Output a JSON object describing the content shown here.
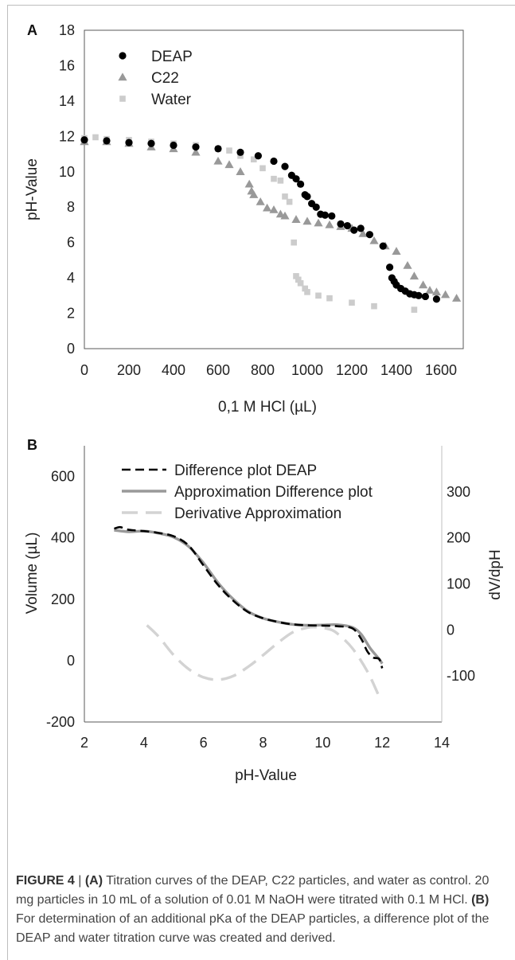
{
  "panel_a": {
    "letter": "A",
    "xlabel": "0,1 M HCl (µL)",
    "ylabel": "pH-Value",
    "legend": [
      "DEAP",
      "C22",
      "Water"
    ]
  },
  "panel_b": {
    "letter": "B",
    "xlabel": "pH-Value",
    "ylabel": "Volume (µL)",
    "y2label": "dV/dpH",
    "legend": [
      "Difference plot DEAP",
      "Approximation Difference plot",
      "Derivative Approximation"
    ]
  },
  "caption": {
    "label": "FIGURE 4",
    "sep": " | ",
    "part_a_label": "(A)",
    "part_a_text": " Titration curves of the DEAP, C22 particles, and water as control. 20 mg particles in 10 mL of a solution of 0.01 M NaOH were titrated with 0.1 M HCl. ",
    "part_b_label": "(B)",
    "part_b_text": " For determination of an additional pKa of the DEAP particles, a difference plot of the DEAP and water titration curve was created and derived."
  },
  "chart_data": [
    {
      "type": "scatter",
      "xlabel": "0,1 M HCl (µL)",
      "ylabel": "pH-Value",
      "xlim": [
        0,
        1700
      ],
      "ylim": [
        0,
        18
      ],
      "xticks": [
        0,
        200,
        400,
        600,
        800,
        1000,
        1200,
        1400,
        1600
      ],
      "yticks": [
        0,
        2,
        4,
        6,
        8,
        10,
        12,
        14,
        16,
        18
      ],
      "legend_position": "top-left",
      "grid": false,
      "series": [
        {
          "name": "DEAP",
          "marker": "circle",
          "color": "#000000",
          "points": [
            [
              0,
              11.8
            ],
            [
              100,
              11.75
            ],
            [
              200,
              11.65
            ],
            [
              300,
              11.6
            ],
            [
              400,
              11.5
            ],
            [
              500,
              11.4
            ],
            [
              600,
              11.3
            ],
            [
              700,
              11.1
            ],
            [
              780,
              10.9
            ],
            [
              850,
              10.6
            ],
            [
              900,
              10.3
            ],
            [
              930,
              9.8
            ],
            [
              950,
              9.6
            ],
            [
              970,
              9.3
            ],
            [
              990,
              8.7
            ],
            [
              1000,
              8.6
            ],
            [
              1020,
              8.2
            ],
            [
              1040,
              8.0
            ],
            [
              1060,
              7.6
            ],
            [
              1080,
              7.55
            ],
            [
              1110,
              7.5
            ],
            [
              1150,
              7.05
            ],
            [
              1180,
              6.95
            ],
            [
              1210,
              6.7
            ],
            [
              1240,
              6.8
            ],
            [
              1280,
              6.45
            ],
            [
              1340,
              5.8
            ],
            [
              1370,
              4.6
            ],
            [
              1380,
              4.0
            ],
            [
              1390,
              3.8
            ],
            [
              1400,
              3.6
            ],
            [
              1420,
              3.4
            ],
            [
              1440,
              3.25
            ],
            [
              1460,
              3.1
            ],
            [
              1480,
              3.05
            ],
            [
              1500,
              3.0
            ],
            [
              1530,
              2.95
            ],
            [
              1580,
              2.8
            ]
          ]
        },
        {
          "name": "C22",
          "marker": "triangle",
          "color": "#999999",
          "points": [
            [
              0,
              11.7
            ],
            [
              100,
              11.7
            ],
            [
              200,
              11.6
            ],
            [
              300,
              11.4
            ],
            [
              400,
              11.3
            ],
            [
              500,
              11.1
            ],
            [
              600,
              10.6
            ],
            [
              650,
              10.4
            ],
            [
              700,
              10.0
            ],
            [
              740,
              9.3
            ],
            [
              750,
              8.9
            ],
            [
              760,
              8.7
            ],
            [
              790,
              8.3
            ],
            [
              820,
              7.95
            ],
            [
              850,
              7.85
            ],
            [
              880,
              7.6
            ],
            [
              900,
              7.5
            ],
            [
              950,
              7.3
            ],
            [
              1000,
              7.2
            ],
            [
              1050,
              7.1
            ],
            [
              1100,
              7.0
            ],
            [
              1150,
              6.9
            ],
            [
              1200,
              6.8
            ],
            [
              1250,
              6.5
            ],
            [
              1300,
              6.1
            ],
            [
              1350,
              5.8
            ],
            [
              1400,
              5.5
            ],
            [
              1450,
              4.7
            ],
            [
              1480,
              4.1
            ],
            [
              1520,
              3.6
            ],
            [
              1550,
              3.3
            ],
            [
              1580,
              3.2
            ],
            [
              1620,
              3.05
            ],
            [
              1670,
              2.85
            ]
          ]
        },
        {
          "name": "Water",
          "marker": "square",
          "color": "#cccccc",
          "points": [
            [
              0,
              11.9
            ],
            [
              50,
              11.95
            ],
            [
              100,
              11.85
            ],
            [
              200,
              11.8
            ],
            [
              300,
              11.7
            ],
            [
              400,
              11.6
            ],
            [
              500,
              11.5
            ],
            [
              600,
              11.3
            ],
            [
              650,
              11.2
            ],
            [
              700,
              10.9
            ],
            [
              760,
              10.7
            ],
            [
              800,
              10.2
            ],
            [
              850,
              9.6
            ],
            [
              880,
              9.5
            ],
            [
              900,
              8.6
            ],
            [
              920,
              8.3
            ],
            [
              940,
              6.0
            ],
            [
              950,
              4.1
            ],
            [
              960,
              3.9
            ],
            [
              970,
              3.7
            ],
            [
              990,
              3.4
            ],
            [
              1000,
              3.2
            ],
            [
              1050,
              3.0
            ],
            [
              1100,
              2.85
            ],
            [
              1200,
              2.6
            ],
            [
              1300,
              2.4
            ],
            [
              1480,
              2.2
            ]
          ]
        }
      ]
    },
    {
      "type": "line",
      "xlabel": "pH-Value",
      "ylabel": "Volume (µL)",
      "y2label": "dV/dpH",
      "xlim": [
        2,
        14
      ],
      "ylim": [
        -200,
        700
      ],
      "y2lim": [
        -200,
        400
      ],
      "xticks": [
        2,
        4,
        6,
        8,
        10,
        12,
        14
      ],
      "yticks": [
        -200,
        0,
        200,
        400,
        600
      ],
      "y2ticks": [
        -100,
        0,
        100,
        200,
        300
      ],
      "legend_position": "top",
      "grid": false,
      "series": [
        {
          "name": "Difference plot DEAP",
          "axis": "left",
          "style": "dashed",
          "color": "#000000",
          "points": [
            [
              3.0,
              430
            ],
            [
              3.2,
              435
            ],
            [
              3.4,
              428
            ],
            [
              3.6,
              425
            ],
            [
              4.0,
              422
            ],
            [
              4.5,
              416
            ],
            [
              5.0,
              405
            ],
            [
              5.5,
              375
            ],
            [
              6.0,
              310
            ],
            [
              6.5,
              245
            ],
            [
              7.0,
              195
            ],
            [
              7.5,
              158
            ],
            [
              8.0,
              138
            ],
            [
              8.5,
              126
            ],
            [
              9.0,
              118
            ],
            [
              9.5,
              115
            ],
            [
              10.0,
              114
            ],
            [
              10.5,
              112
            ],
            [
              11.0,
              105
            ],
            [
              11.3,
              70
            ],
            [
              11.5,
              30
            ],
            [
              11.7,
              10
            ],
            [
              11.9,
              5
            ],
            [
              12.0,
              -25
            ]
          ]
        },
        {
          "name": "Approximation Difference plot",
          "axis": "left",
          "style": "solid",
          "color": "#999999",
          "points": [
            [
              3.0,
              425
            ],
            [
              3.5,
              420
            ],
            [
              4.0,
              422
            ],
            [
              4.5,
              415
            ],
            [
              5.0,
              402
            ],
            [
              5.5,
              372
            ],
            [
              6.0,
              318
            ],
            [
              6.5,
              252
            ],
            [
              7.0,
              200
            ],
            [
              7.5,
              160
            ],
            [
              8.0,
              138
            ],
            [
              8.5,
              126
            ],
            [
              9.0,
              118
            ],
            [
              9.5,
              115
            ],
            [
              10.0,
              116
            ],
            [
              10.5,
              117
            ],
            [
              11.0,
              108
            ],
            [
              11.3,
              85
            ],
            [
              11.6,
              40
            ],
            [
              11.9,
              5
            ],
            [
              12.0,
              -10
            ]
          ]
        },
        {
          "name": "Derivative Approximation",
          "axis": "right",
          "style": "dashed",
          "color": "#d3d3d3",
          "points": [
            [
              4.1,
              10
            ],
            [
              4.5,
              -15
            ],
            [
              5.0,
              -55
            ],
            [
              5.5,
              -85
            ],
            [
              6.0,
              -103
            ],
            [
              6.5,
              -108
            ],
            [
              7.0,
              -100
            ],
            [
              7.5,
              -80
            ],
            [
              8.0,
              -55
            ],
            [
              8.5,
              -28
            ],
            [
              9.0,
              -5
            ],
            [
              9.5,
              5
            ],
            [
              9.8,
              6
            ],
            [
              10.2,
              2
            ],
            [
              10.5,
              -8
            ],
            [
              11.0,
              -40
            ],
            [
              11.5,
              -90
            ],
            [
              11.9,
              -145
            ]
          ]
        }
      ]
    }
  ]
}
